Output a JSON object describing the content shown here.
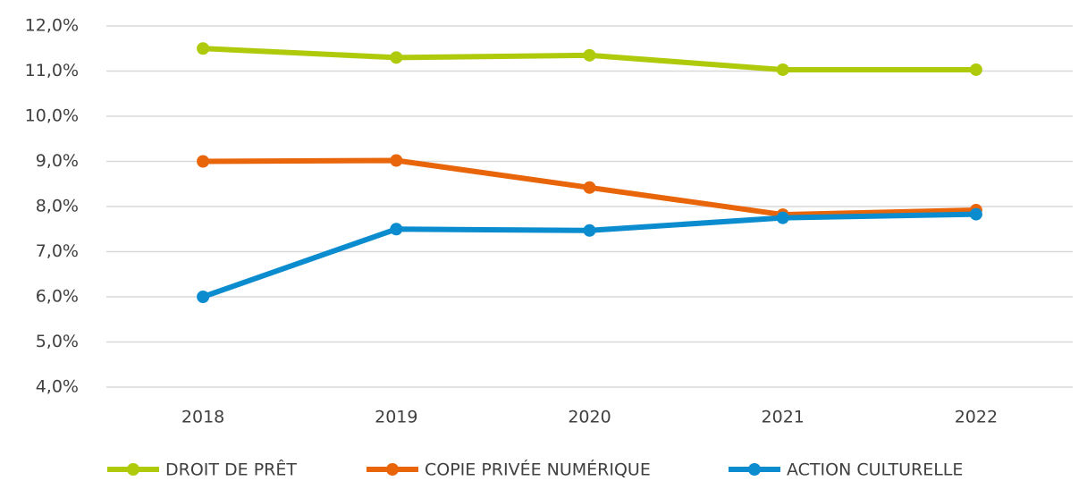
{
  "chart_data": {
    "type": "line",
    "categories": [
      "2018",
      "2019",
      "2020",
      "2021",
      "2022"
    ],
    "series": [
      {
        "name": "DROIT DE PRÊT",
        "color": "#afca0b",
        "values": [
          11.5,
          11.3,
          11.35,
          11.03,
          11.03
        ]
      },
      {
        "name": "COPIE PRIVÉE NUMÉRIQUE",
        "color": "#e8650a",
        "values": [
          9.0,
          9.02,
          8.42,
          7.82,
          7.92
        ]
      },
      {
        "name": "ACTION CULTURELLE",
        "color": "#0a8ccf",
        "values": [
          6.0,
          7.5,
          7.47,
          7.75,
          7.83
        ]
      }
    ],
    "ylim": [
      4,
      12
    ],
    "yticks": [
      {
        "value": 4,
        "label": "4,0%"
      },
      {
        "value": 5,
        "label": "5,0%"
      },
      {
        "value": 6,
        "label": "6,0%"
      },
      {
        "value": 7,
        "label": "7,0%"
      },
      {
        "value": 8,
        "label": "8,0%"
      },
      {
        "value": 9,
        "label": "9,0%"
      },
      {
        "value": 10,
        "label": "10,0%"
      },
      {
        "value": 11,
        "label": "11,0%"
      },
      {
        "value": 12,
        "label": "12,0%"
      }
    ],
    "grid": true,
    "legend": "bottom"
  }
}
